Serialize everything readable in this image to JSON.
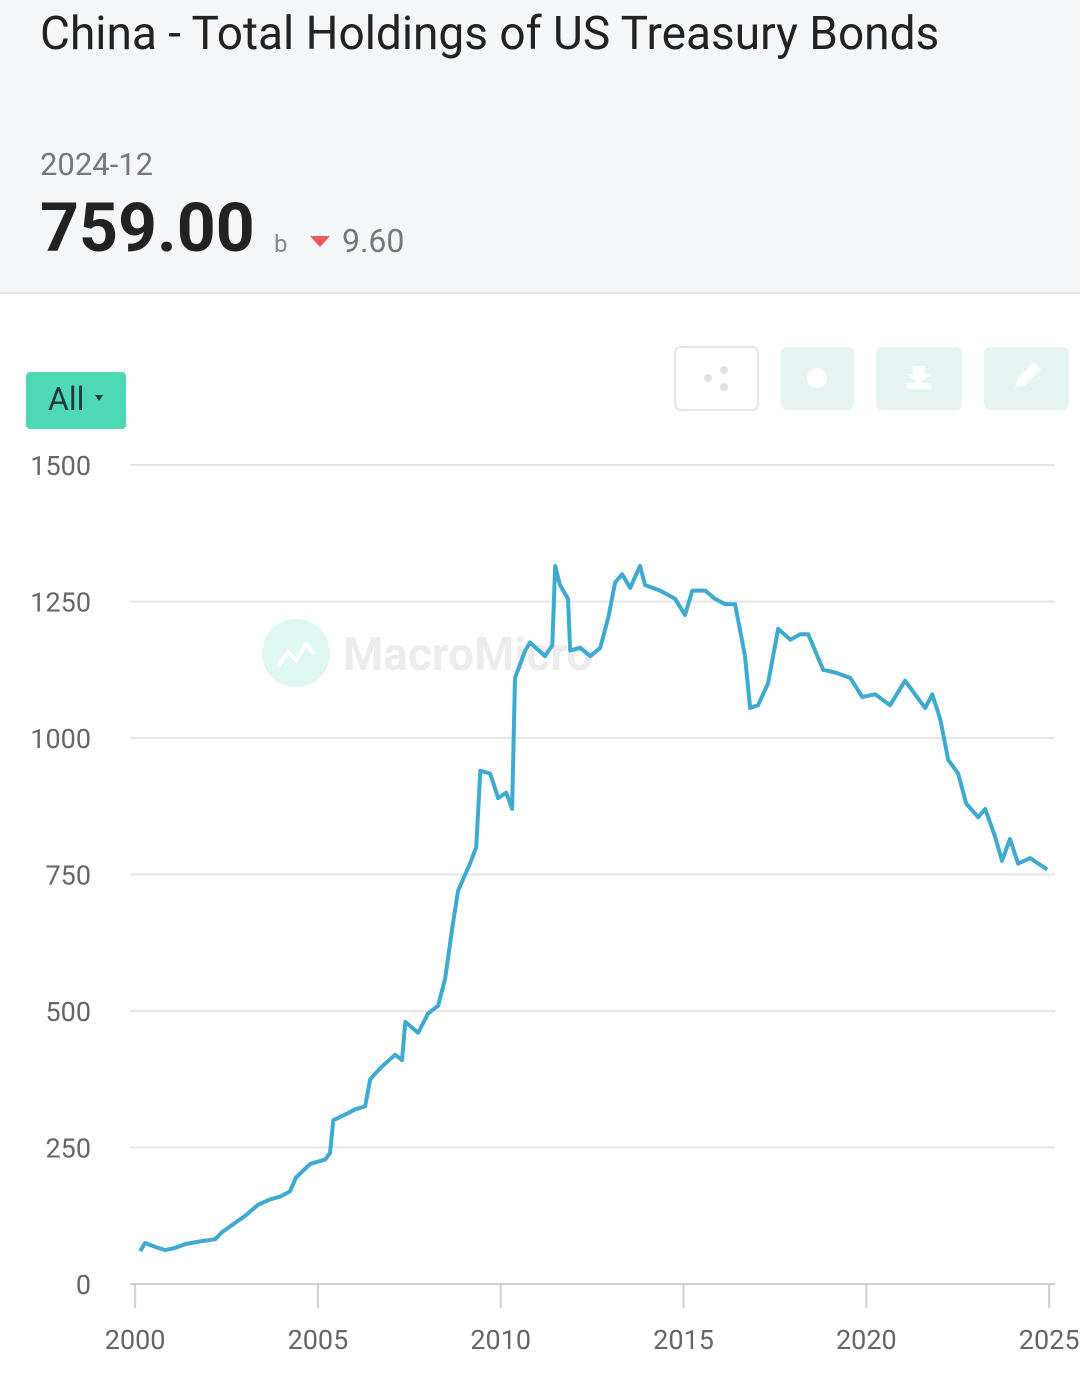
{
  "header": {
    "title": "China - Total Holdings of US Treasury Bonds",
    "date": "2024-12",
    "value": "759.00",
    "unit": "b",
    "change": "9.60"
  },
  "controls": {
    "range": "All"
  },
  "watermark": "MacroMicro",
  "chart_data": {
    "type": "line",
    "x": [
      2000.14,
      2000.27,
      2000.55,
      2000.82,
      2001.09,
      2001.37,
      2001.78,
      2002.19,
      2002.38,
      2002.74,
      2003.01,
      2003.36,
      2003.69,
      2003.97,
      2004.24,
      2004.4,
      2004.79,
      2005.2,
      2005.33,
      2005.42,
      2005.74,
      2006.02,
      2006.29,
      2006.43,
      2006.7,
      2007.11,
      2007.3,
      2007.39,
      2007.74,
      2008.01,
      2008.29,
      2008.48,
      2008.67,
      2008.83,
      2009.16,
      2009.33,
      2009.44,
      2009.71,
      2009.93,
      2010.15,
      2010.31,
      2010.39,
      2010.67,
      2010.8,
      2011.21,
      2011.41,
      2011.49,
      2011.62,
      2011.84,
      2011.9,
      2012.17,
      2012.45,
      2012.72,
      2012.94,
      2013.13,
      2013.32,
      2013.54,
      2013.81,
      2013.95,
      2014.36,
      2014.77,
      2015.04,
      2015.24,
      2015.59,
      2015.86,
      2016.14,
      2016.41,
      2016.68,
      2016.82,
      2017.04,
      2017.31,
      2017.59,
      2017.92,
      2018.19,
      2018.41,
      2018.82,
      2019.15,
      2019.56,
      2019.89,
      2020.24,
      2020.65,
      2021.06,
      2021.33,
      2021.61,
      2021.8,
      2022.02,
      2022.24,
      2022.51,
      2022.73,
      2023.06,
      2023.25,
      2023.52,
      2023.71,
      2023.93,
      2024.15,
      2024.48,
      2024.75,
      2024.95
    ],
    "series": [
      {
        "color": "#3ea9d1",
        "values": [
          60,
          75,
          68,
          62,
          66,
          73,
          78,
          82,
          95,
          112,
          125,
          145,
          155,
          160,
          170,
          195,
          220,
          228,
          240,
          300,
          310,
          320,
          325,
          375,
          395,
          420,
          410,
          480,
          460,
          495,
          510,
          560,
          650,
          720,
          770,
          800,
          940,
          935,
          890,
          900,
          870,
          1110,
          1160,
          1175,
          1150,
          1170,
          1315,
          1280,
          1255,
          1160,
          1165,
          1150,
          1165,
          1220,
          1285,
          1300,
          1275,
          1315,
          1280,
          1270,
          1255,
          1225,
          1270,
          1270,
          1255,
          1245,
          1245,
          1150,
          1055,
          1060,
          1100,
          1200,
          1180,
          1190,
          1190,
          1125,
          1120,
          1110,
          1075,
          1080,
          1060,
          1105,
          1080,
          1055,
          1080,
          1035,
          960,
          935,
          880,
          855,
          870,
          820,
          775,
          815,
          770,
          780,
          768,
          759
        ]
      }
    ],
    "xlim": [
      1999.86,
      2025.16
    ],
    "xticks": [
      2000,
      2005,
      2010,
      2015,
      2020,
      2025
    ],
    "ylim": [
      0,
      1500
    ],
    "yticks": [
      0,
      250,
      500,
      750,
      1000,
      1250,
      1500
    ],
    "grid": true
  }
}
